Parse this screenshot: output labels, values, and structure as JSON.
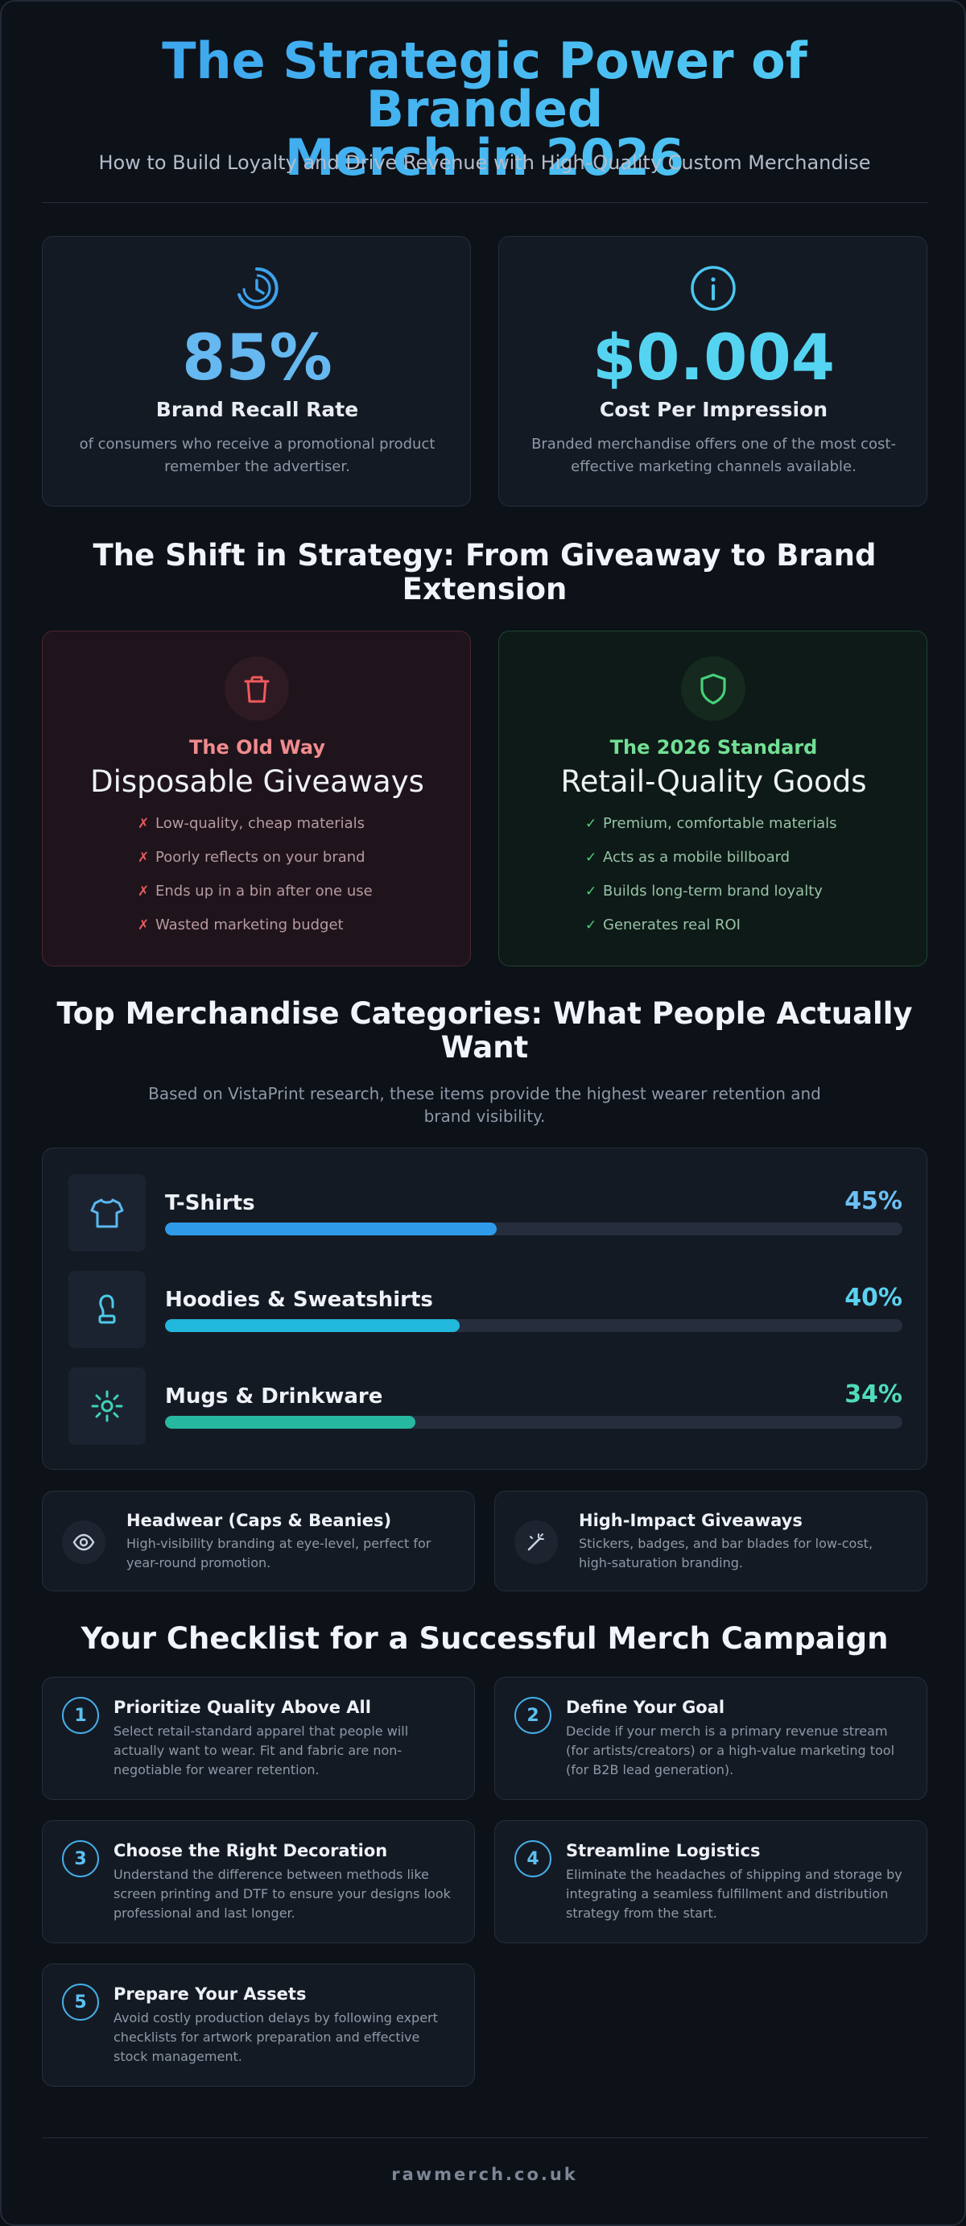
{
  "header": {
    "title_line1": "The Strategic Power of Branded",
    "title_line2": "Merch in 2026",
    "subtitle": "How to Build Loyalty and Drive Revenue with High-Quality Custom Merchandise"
  },
  "stats": [
    {
      "icon": "clock-icon",
      "value": "85%",
      "label": "Brand Recall Rate",
      "desc_line1": "of consumers who receive a promotional product",
      "desc_line2": "remember the advertiser.",
      "color": "#66b8f0"
    },
    {
      "icon": "info-icon",
      "value": "$0.004",
      "label": "Cost Per Impression",
      "desc_line1": "Branded merchandise offers one of the most cost-",
      "desc_line2": "effective marketing channels available.",
      "color": "#55d4f2"
    }
  ],
  "shift": {
    "heading_line1": "The Shift in Strategy: From Giveaway to Brand",
    "heading_line2": "Extension",
    "old": {
      "icon": "trash-icon",
      "tag": "The Old Way",
      "title": "Disposable Giveaways",
      "marker": "✗",
      "points": [
        "Low-quality, cheap materials",
        "Poorly reflects on your brand",
        "Ends up in a bin after one use",
        "Wasted marketing budget"
      ],
      "color": "#ef6a6e"
    },
    "new": {
      "icon": "shield-icon",
      "tag": "The 2026 Standard",
      "title": "Retail-Quality Goods",
      "marker": "✓",
      "points": [
        "Premium, comfortable materials",
        "Acts as a mobile billboard",
        "Builds long-term brand loyalty",
        "Generates real ROI"
      ],
      "color": "#5fd88a"
    }
  },
  "categories": {
    "heading_line1": "Top Merchandise Categories: What People Actually",
    "heading_line2": "Want",
    "intro_line1": "Based on VistaPrint research, these items provide the highest wearer retention and",
    "intro_line2": "brand visibility.",
    "items": [
      {
        "name": "T-Shirts",
        "percent_text": "45%",
        "percent": 45,
        "icon": "tshirt-icon",
        "color": "#2f9ae8",
        "text_color": "#6cc0f3"
      },
      {
        "name": "Hoodies & Sweatshirts",
        "percent_text": "40%",
        "percent": 40,
        "icon": "hoodie-icon",
        "color": "#22b8dc",
        "text_color": "#5bd2ef"
      },
      {
        "name": "Mugs & Drinkware",
        "percent_text": "34%",
        "percent": 34,
        "icon": "sun-icon",
        "color": "#27b8a0",
        "text_color": "#4fdcbc"
      }
    ],
    "extras": [
      {
        "icon": "eye-icon",
        "title": "Headwear (Caps & Beanies)",
        "desc_line1": "High-visibility branding at eye-level, perfect for",
        "desc_line2": "year-round promotion."
      },
      {
        "icon": "magic-wand-icon",
        "title": "High-Impact Giveaways",
        "desc_line1": "Stickers, badges, and bar blades for low-cost,",
        "desc_line2": "high-saturation branding."
      }
    ]
  },
  "checklist": {
    "heading": "Your Checklist for a Successful Merch Campaign",
    "steps": [
      {
        "number": "1",
        "title": "Prioritize Quality Above All",
        "lines": [
          "Select retail-standard apparel that people will",
          "actually want to wear. Fit and fabric are non-",
          "negotiable for wearer retention."
        ]
      },
      {
        "number": "2",
        "title": "Define Your Goal",
        "lines": [
          "Decide if your merch is a primary revenue stream",
          "(for artists/creators) or a high-value marketing tool",
          "(for B2B lead generation)."
        ]
      },
      {
        "number": "3",
        "title": "Choose the Right Decoration",
        "lines": [
          "Understand the difference between methods like",
          "screen printing and DTF to ensure your designs look",
          "professional and last longer."
        ]
      },
      {
        "number": "4",
        "title": "Streamline Logistics",
        "lines": [
          "Eliminate the headaches of shipping and storage by",
          "integrating a seamless fulfillment and distribution",
          "strategy from the start."
        ]
      },
      {
        "number": "5",
        "title": "Prepare Your Assets",
        "lines": [
          "Avoid costly production delays by following expert",
          "checklists for artwork preparation and effective",
          "stock management."
        ]
      }
    ]
  },
  "footer": {
    "site": "rawmerch.co.uk"
  }
}
